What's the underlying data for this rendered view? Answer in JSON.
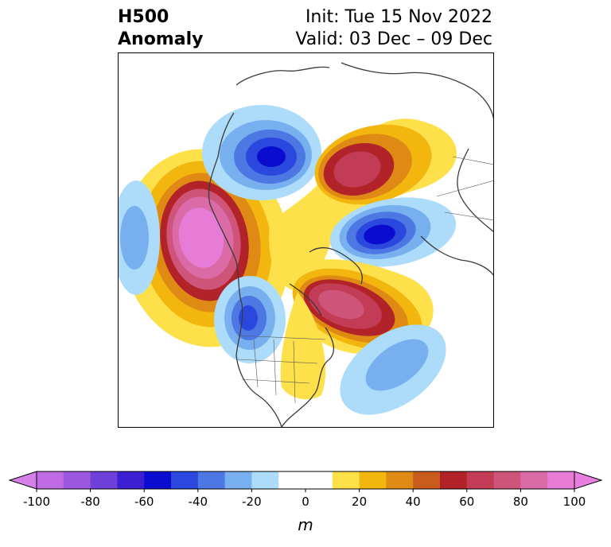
{
  "title": {
    "left_line1": "H500",
    "left_line2": "Anomaly",
    "right_line1": "Init: Tue 15 Nov 2022",
    "right_line2": "Valid: 03 Dec – 09 Dec"
  },
  "colorbar": {
    "unit": "m",
    "range": [
      -100,
      100
    ],
    "ticks": [
      "-100",
      "-80",
      "-60",
      "-40",
      "-20",
      "0",
      "20",
      "40",
      "60",
      "80",
      "100"
    ],
    "extend_low_color": "#d77fe8",
    "extend_high_color": "#e87fe0",
    "bins": [
      {
        "from": -100,
        "to": -90,
        "color": "#c06ae3"
      },
      {
        "from": -90,
        "to": -80,
        "color": "#9c57e0"
      },
      {
        "from": -80,
        "to": -70,
        "color": "#6f3fd9"
      },
      {
        "from": -70,
        "to": -60,
        "color": "#3c1fd2"
      },
      {
        "from": -60,
        "to": -50,
        "color": "#0a0ccf"
      },
      {
        "from": -50,
        "to": -40,
        "color": "#2a48dd"
      },
      {
        "from": -40,
        "to": -30,
        "color": "#4d78e4"
      },
      {
        "from": -30,
        "to": -20,
        "color": "#78b0ef"
      },
      {
        "from": -20,
        "to": -10,
        "color": "#acdcf9"
      },
      {
        "from": -10,
        "to": 10,
        "color": "#ffffff"
      },
      {
        "from": 10,
        "to": 20,
        "color": "#fde04a"
      },
      {
        "from": 20,
        "to": 30,
        "color": "#f2b60e"
      },
      {
        "from": 30,
        "to": 40,
        "color": "#df8a14"
      },
      {
        "from": 40,
        "to": 50,
        "color": "#c95c1c"
      },
      {
        "from": 50,
        "to": 60,
        "color": "#b12328"
      },
      {
        "from": 60,
        "to": 70,
        "color": "#c23c55"
      },
      {
        "from": 70,
        "to": 80,
        "color": "#cf5479"
      },
      {
        "from": 80,
        "to": 90,
        "color": "#da6ba6"
      },
      {
        "from": 90,
        "to": 100,
        "color": "#e67cd6"
      }
    ]
  }
}
